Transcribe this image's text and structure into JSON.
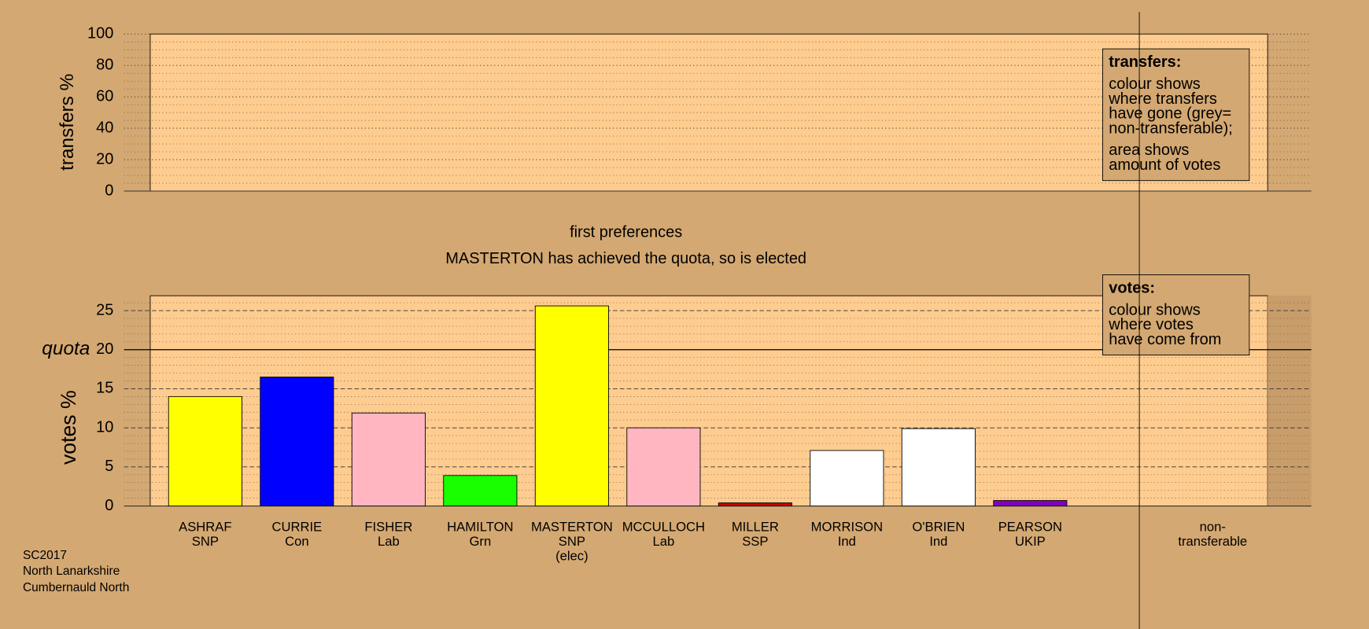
{
  "chart_data": [
    {
      "type": "bar",
      "ylabel": "transfers %",
      "ylim": [
        0,
        100
      ],
      "yticks": [
        0,
        20,
        40,
        60,
        80,
        100
      ],
      "grid": true,
      "note": {
        "title": "transfers:",
        "paragraphs": [
          [
            "colour shows",
            "where transfers",
            "have gone (grey=",
            "non-transferable);"
          ],
          [
            "area shows",
            "amount of votes"
          ]
        ]
      }
    },
    {
      "type": "bar",
      "title": "first preferences",
      "subtitle": "MASTERTON has achieved the quota, so is elected",
      "ylabel": "votes %",
      "ylim": [
        0,
        26.9
      ],
      "yticks": [
        0,
        5,
        10,
        15,
        20,
        25
      ],
      "grid": true,
      "quota": {
        "value": 20,
        "label": "quota"
      },
      "categories": [
        [
          "ASHRAF",
          "SNP"
        ],
        [
          "CURRIE",
          "Con"
        ],
        [
          "FISHER",
          "Lab"
        ],
        [
          "HAMILTON",
          "Grn"
        ],
        [
          "MASTERTON",
          "SNP",
          "(elec)"
        ],
        [
          "MCCULLOCH",
          "Lab"
        ],
        [
          "MILLER",
          "SSP"
        ],
        [
          "MORRISON",
          "Ind"
        ],
        [
          "O'BRIEN",
          "Ind"
        ],
        [
          "PEARSON",
          "UKIP"
        ],
        [
          "non-",
          "transferable"
        ]
      ],
      "values": [
        14.0,
        16.5,
        11.9,
        3.9,
        25.6,
        10.0,
        0.4,
        7.1,
        9.9,
        0.7,
        null
      ],
      "colors": [
        "#ffff00",
        "#0000ff",
        "#ffb6c1",
        "#1aff00",
        "#ffff00",
        "#ffb6c1",
        "#cc0000",
        "#ffffff",
        "#ffffff",
        "#8000c0",
        null
      ],
      "note": {
        "title": "votes:",
        "paragraphs": [
          [
            "colour shows",
            "where votes",
            "have come from"
          ]
        ]
      }
    }
  ],
  "footer": [
    "SC2017",
    "North Lanarkshire",
    "Cumbernauld North"
  ]
}
